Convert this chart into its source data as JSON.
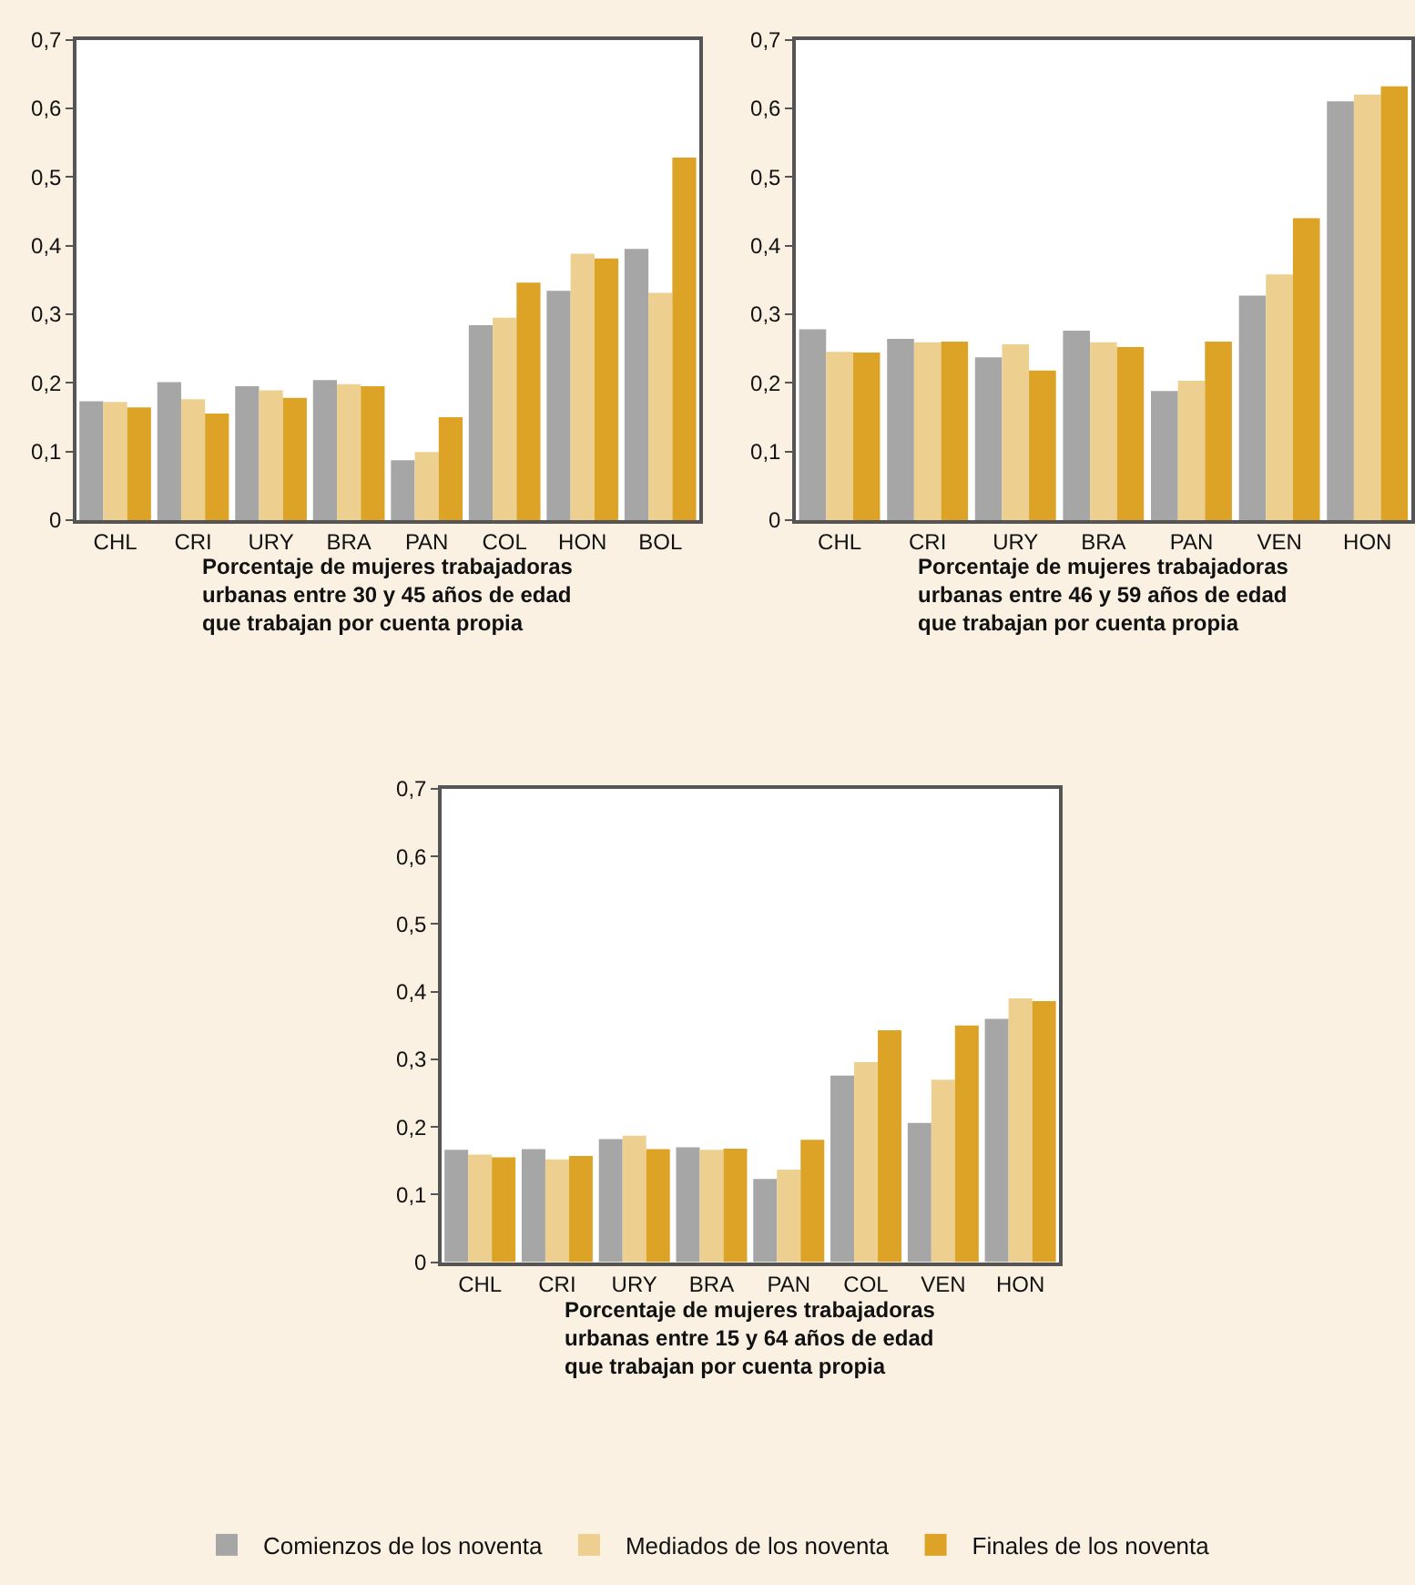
{
  "chart_data": [
    {
      "type": "bar",
      "xlabel": "Porcentaje de mujeres trabajadoras\nurbanas entre 30 y 45 años de edad\nque trabajan por cuenta propia",
      "categories": [
        "CHL",
        "CRI",
        "URY",
        "BRA",
        "PAN",
        "COL",
        "HON",
        "BOL"
      ],
      "series": [
        {
          "name": "Comienzos de los noventa",
          "color": "#a6a6a6",
          "values": [
            0.173,
            0.201,
            0.195,
            0.204,
            0.087,
            0.284,
            0.334,
            0.395
          ]
        },
        {
          "name": "Mediados de los noventa",
          "color": "#edd08f",
          "values": [
            0.172,
            0.176,
            0.189,
            0.198,
            0.099,
            0.295,
            0.388,
            0.331
          ]
        },
        {
          "name": "Finales de los noventa",
          "color": "#dca326",
          "values": [
            0.164,
            0.155,
            0.178,
            0.195,
            0.15,
            0.346,
            0.381,
            0.528
          ]
        }
      ],
      "ylim": [
        0,
        0.7
      ],
      "yticks": [
        0,
        {
          "value": 0.1,
          "label": "0,1"
        },
        {
          "value": 0.2,
          "label": "0,2"
        },
        {
          "value": 0.3,
          "label": "0,3"
        },
        {
          "value": 0.4,
          "label": "0,4"
        },
        {
          "value": 0.5,
          "label": "0,5"
        },
        {
          "value": 0.6,
          "label": "0,6"
        },
        {
          "value": 0.7,
          "label": "0,7"
        }
      ],
      "grid": false,
      "legend": "bottom"
    },
    {
      "type": "bar",
      "xlabel": "Porcentaje de mujeres trabajadoras\nurbanas entre 46 y 59 años de edad\nque trabajan por cuenta propia",
      "categories": [
        "CHL",
        "CRI",
        "URY",
        "BRA",
        "PAN",
        "VEN",
        "HON"
      ],
      "series": [
        {
          "name": "Comienzos de los noventa",
          "color": "#a6a6a6",
          "values": [
            0.278,
            0.264,
            0.237,
            0.276,
            0.188,
            0.327,
            0.61
          ]
        },
        {
          "name": "Mediados de los noventa",
          "color": "#edd08f",
          "values": [
            0.245,
            0.259,
            0.256,
            0.259,
            0.203,
            0.358,
            0.62
          ]
        },
        {
          "name": "Finales de los noventa",
          "color": "#dca326",
          "values": [
            0.244,
            0.26,
            0.218,
            0.252,
            0.26,
            0.44,
            0.632
          ]
        }
      ],
      "ylim": [
        0,
        0.7
      ],
      "yticks": [
        0,
        {
          "value": 0.1,
          "label": "0,1"
        },
        {
          "value": 0.2,
          "label": "0,2"
        },
        {
          "value": 0.3,
          "label": "0,3"
        },
        {
          "value": 0.4,
          "label": "0,4"
        },
        {
          "value": 0.5,
          "label": "0,5"
        },
        {
          "value": 0.6,
          "label": "0,6"
        },
        {
          "value": 0.7,
          "label": "0,7"
        }
      ],
      "grid": false,
      "legend": "bottom"
    },
    {
      "type": "bar",
      "xlabel": "Porcentaje de mujeres trabajadoras\nurbanas entre 15 y 64 años de edad\nque trabajan por cuenta propia",
      "categories": [
        "CHL",
        "CRI",
        "URY",
        "BRA",
        "PAN",
        "COL",
        "VEN",
        "HON"
      ],
      "series": [
        {
          "name": "Comienzos de los noventa",
          "color": "#a6a6a6",
          "values": [
            0.166,
            0.167,
            0.182,
            0.17,
            0.123,
            0.276,
            0.206,
            0.36
          ]
        },
        {
          "name": "Mediados de los noventa",
          "color": "#edd08f",
          "values": [
            0.159,
            0.152,
            0.187,
            0.166,
            0.137,
            0.296,
            0.27,
            0.39
          ]
        },
        {
          "name": "Finales de los noventa",
          "color": "#dca326",
          "values": [
            0.155,
            0.157,
            0.167,
            0.168,
            0.181,
            0.343,
            0.35,
            0.386
          ]
        }
      ],
      "ylim": [
        0,
        0.7
      ],
      "yticks": [
        0,
        {
          "value": 0.1,
          "label": "0,1"
        },
        {
          "value": 0.2,
          "label": "0,2"
        },
        {
          "value": 0.3,
          "label": "0,3"
        },
        {
          "value": 0.4,
          "label": "0,4"
        },
        {
          "value": 0.5,
          "label": "0,5"
        },
        {
          "value": 0.6,
          "label": "0,6"
        },
        {
          "value": 0.7,
          "label": "0,7"
        }
      ],
      "grid": false,
      "legend": "bottom"
    }
  ]
}
